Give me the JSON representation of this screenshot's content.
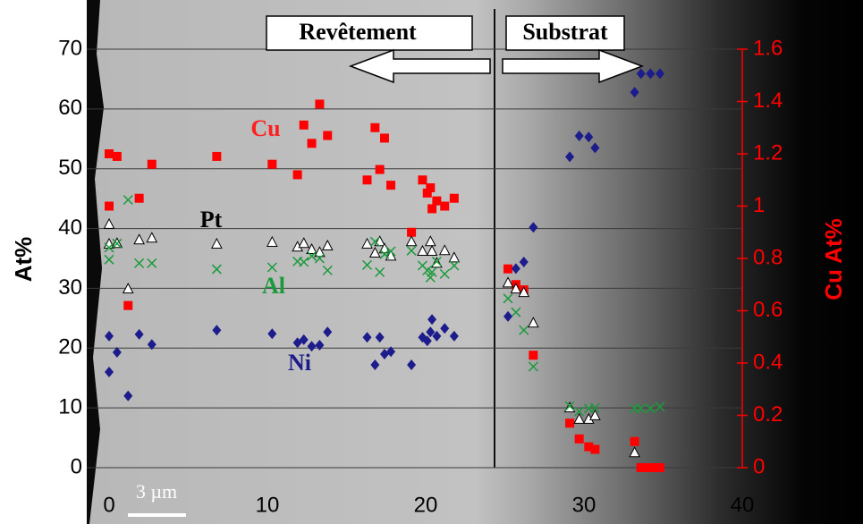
{
  "chart_data": {
    "type": "scatter",
    "ylabel": "At%",
    "y2label": "Cu At%",
    "xlim": [
      0,
      40
    ],
    "xticks": [
      0,
      10,
      20,
      30,
      40
    ],
    "ylim": [
      0,
      70
    ],
    "yticks": [
      0,
      10,
      20,
      30,
      40,
      50,
      60,
      70
    ],
    "y2lim": [
      0,
      1.6
    ],
    "y2ticks": [
      0,
      0.2,
      0.4,
      0.6,
      0.8,
      1,
      1.2,
      1.4,
      1.6
    ],
    "grid": true,
    "annotations": {
      "coating": "Revêtement",
      "substrate": "Substrat",
      "scale": "3 µm"
    },
    "series": [
      {
        "name": "Cu",
        "color": "#ff0000",
        "marker": "square",
        "axis": "y2",
        "x": [
          0,
          0,
          0.5,
          1.2,
          1.9,
          2.7,
          6.8,
          10.3,
          11.9,
          12.3,
          12.8,
          13.3,
          13.8,
          16.3,
          16.8,
          17.1,
          17.4,
          17.8,
          19.1,
          19.8,
          20.1,
          20.3,
          20.4,
          20.7,
          21.2,
          21.8,
          25.2,
          25.7,
          26.2,
          26.8,
          29.1,
          29.7,
          30.3,
          30.7,
          33.2,
          33.6,
          33.9,
          34.2,
          34.5,
          34.8
        ],
        "values": [
          1.0,
          1.2,
          1.19,
          0.62,
          1.03,
          1.16,
          1.19,
          1.16,
          1.12,
          1.31,
          1.24,
          1.39,
          1.27,
          1.1,
          1.3,
          1.14,
          1.26,
          1.08,
          0.9,
          1.1,
          1.05,
          1.07,
          0.99,
          1.02,
          1.0,
          1.03,
          0.76,
          0.7,
          0.68,
          0.43,
          0.17,
          0.11,
          0.08,
          0.07,
          0.1,
          0,
          0,
          0,
          0,
          0
        ]
      },
      {
        "name": "Pt",
        "color": "#ffffff",
        "marker": "triangle",
        "x": [
          0,
          0,
          0.5,
          1.2,
          1.9,
          2.7,
          6.8,
          10.3,
          11.9,
          12.3,
          12.8,
          13.3,
          13.8,
          16.3,
          16.8,
          17.1,
          17.4,
          17.8,
          19.1,
          19.8,
          20.3,
          20.4,
          20.7,
          21.2,
          21.8,
          25.2,
          25.7,
          26.2,
          26.8,
          29.1,
          29.7,
          30.3,
          30.7,
          33.2
        ],
        "values": [
          40.7,
          37.4,
          37.5,
          29.9,
          38.1,
          38.4,
          37.4,
          37.7,
          36.9,
          37.5,
          36.5,
          36,
          37.1,
          37.4,
          35.9,
          37.8,
          36.6,
          35.4,
          37.8,
          36.2,
          37.8,
          36.2,
          34.2,
          36.3,
          35.1,
          30.9,
          29.9,
          29.3,
          24.2,
          10,
          8.1,
          8.1,
          8.7,
          2.5
        ]
      },
      {
        "name": "Al",
        "color": "#1a9a3a",
        "marker": "cross",
        "x": [
          0,
          0,
          0.5,
          1.2,
          1.9,
          2.7,
          6.8,
          10.3,
          11.9,
          12.3,
          12.8,
          13.3,
          13.8,
          16.3,
          16.8,
          17.1,
          17.4,
          17.8,
          19.1,
          19.8,
          20.1,
          20.3,
          20.4,
          20.7,
          21.2,
          21.8,
          25.2,
          25.7,
          26.2,
          26.8,
          29.1,
          29.7,
          30.3,
          30.7,
          33.2,
          33.6,
          34.2,
          34.8
        ],
        "values": [
          34.8,
          36.8,
          37.5,
          44.8,
          34.2,
          34.2,
          33.2,
          33.5,
          34.5,
          34.4,
          35.4,
          35,
          33,
          33.9,
          37.8,
          32.7,
          35.7,
          36.2,
          36.3,
          33.8,
          33,
          31.8,
          32.7,
          34.5,
          32.4,
          33.8,
          28.3,
          26,
          23,
          16.9,
          10.3,
          9.4,
          9.9,
          10,
          9.9,
          9.9,
          9.9,
          10.2
        ]
      },
      {
        "name": "Ni",
        "color": "#1c1c8c",
        "marker": "diamond",
        "x": [
          0,
          0,
          0.5,
          1.2,
          1.9,
          2.7,
          6.8,
          10.3,
          11.9,
          12.3,
          12.8,
          13.3,
          13.8,
          16.3,
          16.8,
          17.1,
          17.4,
          17.8,
          19.1,
          19.8,
          20.1,
          20.3,
          20.4,
          20.7,
          21.2,
          21.8,
          25.2,
          25.7,
          26.2,
          26.8,
          29.1,
          29.7,
          30.3,
          30.7,
          33.2,
          33.6,
          34.2,
          34.8
        ],
        "values": [
          22,
          16,
          19.3,
          12,
          22.3,
          20.6,
          23,
          22.4,
          20.9,
          21.4,
          20.3,
          20.5,
          22.7,
          21.8,
          17.2,
          21.8,
          19,
          19.4,
          17.2,
          21.8,
          21.2,
          22.7,
          24.8,
          22,
          23.3,
          22,
          25.3,
          33.3,
          34.4,
          40.2,
          52,
          55.5,
          55.3,
          53.5,
          62.8,
          65.9,
          65.9,
          65.9
        ]
      }
    ]
  }
}
